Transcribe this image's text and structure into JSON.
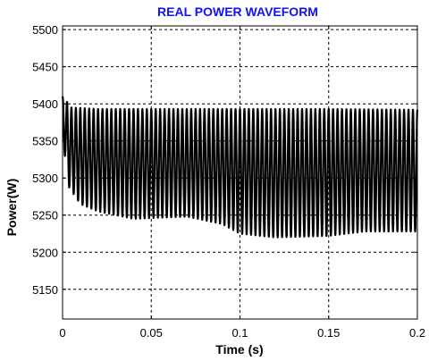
{
  "chart_data": {
    "type": "line",
    "title": "REAL POWER WAVEFORM",
    "title_color": "#1010ff",
    "xlabel": "Time (s)",
    "ylabel": "Power(W)",
    "xlim": [
      0,
      0.2
    ],
    "ylim": [
      5110,
      5505
    ],
    "xticks": [
      0,
      0.05,
      0.1,
      0.15,
      0.2
    ],
    "xtick_labels": [
      "0",
      "0.05",
      "0.1",
      "0.15",
      "0.2"
    ],
    "yticks": [
      5150,
      5200,
      5250,
      5300,
      5350,
      5400,
      5450,
      5500
    ],
    "ytick_labels": [
      "5150",
      "5200",
      "5250",
      "5300",
      "5350",
      "5400",
      "5450",
      "5500"
    ],
    "grid": "dashed",
    "series": [
      {
        "color": "#000000",
        "oscillation_period_s": 0.0025,
        "initial_value": 5410,
        "upper_envelope": [
          [
            0,
            5410
          ],
          [
            0.005,
            5395
          ],
          [
            0.02,
            5393
          ],
          [
            0.05,
            5393
          ],
          [
            0.1,
            5393
          ],
          [
            0.15,
            5393
          ],
          [
            0.2,
            5392
          ]
        ],
        "lower_envelope": [
          [
            0,
            5360
          ],
          [
            0.003,
            5290
          ],
          [
            0.01,
            5265
          ],
          [
            0.02,
            5255
          ],
          [
            0.04,
            5245
          ],
          [
            0.07,
            5248
          ],
          [
            0.09,
            5238
          ],
          [
            0.1,
            5225
          ],
          [
            0.12,
            5220
          ],
          [
            0.15,
            5222
          ],
          [
            0.17,
            5228
          ],
          [
            0.2,
            5228
          ]
        ]
      }
    ]
  }
}
